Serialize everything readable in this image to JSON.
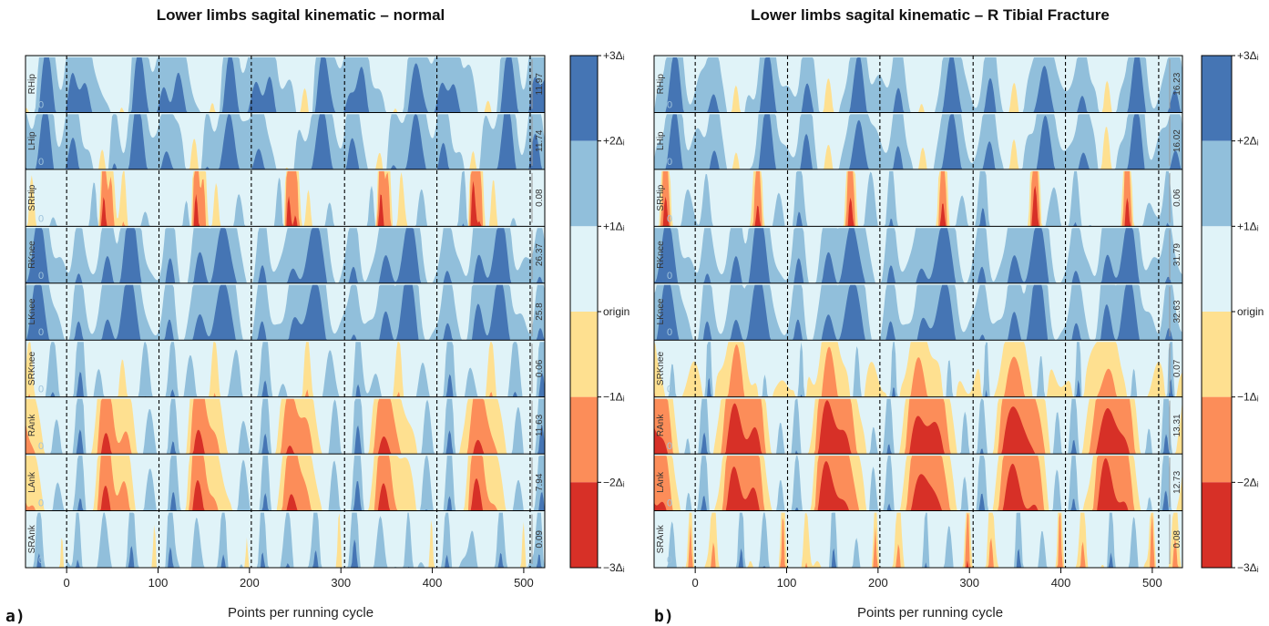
{
  "colors": {
    "neg3": "#d73027",
    "neg2": "#fc8d59",
    "neg1": "#fee090",
    "pos1": "#e0f3f8",
    "pos2": "#91bfdb",
    "pos3": "#4575b4",
    "frame": "#000000",
    "cycle_line": "#000000",
    "range_arrow": "#999999"
  },
  "chart_data": [
    {
      "type": "heatmap",
      "panel_label": "a)",
      "title": "Lower limbs sagital kinematic – normal",
      "xlabel": "Points per running cycle",
      "xlim": [
        -45,
        523
      ],
      "x_ticks": [
        0,
        100,
        200,
        300,
        400,
        500
      ],
      "cycle_boundaries": [
        0,
        101,
        202,
        304,
        405,
        507
      ],
      "rows": [
        {
          "name": "RHip",
          "range": "11.97",
          "zero_label": "0",
          "cycle_length": 101,
          "mean_level": 1.6,
          "peaks": [
            {
              "phase": 0.06,
              "level": 2.0,
              "width": 0.05
            },
            {
              "phase": 0.2,
              "level": 2.2,
              "width": 0.05
            },
            {
              "phase": 0.46,
              "level": 0.6,
              "width": 0.07
            },
            {
              "phase": 0.78,
              "level": 3.0,
              "width": 0.06
            },
            {
              "phase": 0.58,
              "level": -0.9,
              "width": 0.07
            }
          ]
        },
        {
          "name": "LHip",
          "range": "11.74",
          "zero_label": "0",
          "cycle_length": 101,
          "mean_level": 1.5,
          "peaks": [
            {
              "phase": 0.08,
              "level": 2.0,
              "width": 0.05
            },
            {
              "phase": 0.4,
              "level": -1.2,
              "width": 0.07
            },
            {
              "phase": 0.5,
              "level": 1.8,
              "width": 0.05
            },
            {
              "phase": 0.77,
              "level": 3.1,
              "width": 0.06
            }
          ]
        },
        {
          "name": "SRHip",
          "range": "0.08",
          "zero_label": "0",
          "cycle_length": 101,
          "mean_level": 0.4,
          "peaks": [
            {
              "phase": 0.3,
              "level": 1.6,
              "width": 0.04
            },
            {
              "phase": 0.4,
              "level": -3.2,
              "width": 0.03
            },
            {
              "phase": 0.48,
              "level": -2.1,
              "width": 0.03
            },
            {
              "phase": 0.62,
              "level": -1.1,
              "width": 0.03
            },
            {
              "phase": 0.85,
              "level": 1.2,
              "width": 0.05
            }
          ]
        },
        {
          "name": "RKnee",
          "range": "26.37",
          "zero_label": "0",
          "cycle_length": 101,
          "mean_level": 1.1,
          "peaks": [
            {
              "phase": 0.12,
              "level": 1.9,
              "width": 0.05
            },
            {
              "phase": 0.45,
              "level": 2.2,
              "width": 0.06
            },
            {
              "phase": 0.7,
              "level": 3.4,
              "width": 0.08
            }
          ]
        },
        {
          "name": "LKnee",
          "range": "25.8",
          "zero_label": "0",
          "cycle_length": 101,
          "mean_level": 1.1,
          "peaks": [
            {
              "phase": 0.12,
              "level": 1.9,
              "width": 0.05
            },
            {
              "phase": 0.45,
              "level": 2.2,
              "width": 0.06
            },
            {
              "phase": 0.69,
              "level": 3.4,
              "width": 0.08
            }
          ]
        },
        {
          "name": "SRKnee",
          "range": "0.06",
          "zero_label": "0",
          "cycle_length": 101,
          "mean_level": 0.6,
          "peaks": [
            {
              "phase": 0.15,
              "level": 2.2,
              "width": 0.04
            },
            {
              "phase": 0.35,
              "level": 1.2,
              "width": 0.05
            },
            {
              "phase": 0.6,
              "level": -1.3,
              "width": 0.04
            },
            {
              "phase": 0.85,
              "level": 1.6,
              "width": 0.05
            }
          ]
        },
        {
          "name": "RAnk",
          "range": "11.63",
          "zero_label": "0",
          "cycle_length": 101,
          "mean_level": 0.5,
          "peaks": [
            {
              "phase": 0.15,
              "level": 2.4,
              "width": 0.04
            },
            {
              "phase": 0.42,
              "level": -2.5,
              "width": 0.08
            },
            {
              "phase": 0.62,
              "level": -1.4,
              "width": 0.1
            },
            {
              "phase": 0.9,
              "level": 1.6,
              "width": 0.05
            }
          ]
        },
        {
          "name": "LAnk",
          "range": "7.94",
          "zero_label": "0",
          "cycle_length": 101,
          "mean_level": 0.5,
          "peaks": [
            {
              "phase": 0.15,
              "level": 2.3,
              "width": 0.04
            },
            {
              "phase": 0.42,
              "level": -2.8,
              "width": 0.07
            },
            {
              "phase": 0.62,
              "level": -1.4,
              "width": 0.1
            },
            {
              "phase": 0.9,
              "level": 1.6,
              "width": 0.05
            }
          ]
        },
        {
          "name": "SRAnk",
          "range": "0.09",
          "zero_label": "0",
          "cycle_length": 101,
          "mean_level": 0.8,
          "peaks": [
            {
              "phase": 0.12,
              "level": 2.1,
              "width": 0.03
            },
            {
              "phase": 0.4,
              "level": 1.5,
              "width": 0.04
            },
            {
              "phase": 0.7,
              "level": 2.0,
              "width": 0.03
            },
            {
              "phase": 0.95,
              "level": -1.2,
              "width": 0.02
            }
          ]
        }
      ],
      "legend": {
        "labels": [
          "+3Δᵢ",
          "+2Δᵢ",
          "+1Δᵢ",
          "origin",
          "−1Δᵢ",
          "−2Δᵢ",
          "−3Δᵢ"
        ]
      }
    },
    {
      "type": "heatmap",
      "panel_label": "b)",
      "title": "Lower limbs sagital kinematic – R Tibial Fracture",
      "xlabel": "Points per running cycle",
      "xlim": [
        -45,
        533
      ],
      "x_ticks": [
        0,
        100,
        200,
        300,
        400,
        500
      ],
      "cycle_boundaries": [
        0,
        101,
        202,
        304,
        405,
        507
      ],
      "rows": [
        {
          "name": "RHip",
          "range": "16.23",
          "zero_label": "0",
          "cycle_length": 101,
          "mean_level": 1.4,
          "peaks": [
            {
              "phase": 0.2,
              "level": 2.0,
              "width": 0.05
            },
            {
              "phase": 0.45,
              "level": -1.2,
              "width": 0.06
            },
            {
              "phase": 0.78,
              "level": 3.0,
              "width": 0.06
            }
          ]
        },
        {
          "name": "LHip",
          "range": "16.02",
          "zero_label": "0",
          "cycle_length": 101,
          "mean_level": 1.4,
          "peaks": [
            {
              "phase": 0.2,
              "level": 2.0,
              "width": 0.05
            },
            {
              "phase": 0.45,
              "level": -1.2,
              "width": 0.06
            },
            {
              "phase": 0.78,
              "level": 3.0,
              "width": 0.06
            }
          ]
        },
        {
          "name": "SRHip",
          "range": "0.06",
          "zero_label": "0",
          "cycle_length": 101,
          "mean_level": 0.7,
          "peaks": [
            {
              "phase": 0.12,
              "level": 1.9,
              "width": 0.04
            },
            {
              "phase": 0.68,
              "level": -3.2,
              "width": 0.04
            },
            {
              "phase": 0.9,
              "level": 1.3,
              "width": 0.05
            }
          ]
        },
        {
          "name": "RKnee",
          "range": "31.79",
          "zero_label": "0",
          "cycle_length": 101,
          "mean_level": 1.1,
          "peaks": [
            {
              "phase": 0.12,
              "level": 1.9,
              "width": 0.05
            },
            {
              "phase": 0.45,
              "level": 2.2,
              "width": 0.06
            },
            {
              "phase": 0.7,
              "level": 3.4,
              "width": 0.08
            }
          ]
        },
        {
          "name": "LKnee",
          "range": "32.63",
          "zero_label": "0",
          "cycle_length": 101,
          "mean_level": 1.1,
          "peaks": [
            {
              "phase": 0.12,
              "level": 1.9,
              "width": 0.05
            },
            {
              "phase": 0.45,
              "level": 2.2,
              "width": 0.06
            },
            {
              "phase": 0.7,
              "level": 3.4,
              "width": 0.08
            }
          ]
        },
        {
          "name": "SRKnee",
          "range": "0.07",
          "zero_label": "0",
          "cycle_length": 101,
          "mean_level": -0.3,
          "peaks": [
            {
              "phase": 0.15,
              "level": 2.5,
              "width": 0.03
            },
            {
              "phase": 0.45,
              "level": -1.6,
              "width": 0.08
            },
            {
              "phase": 0.75,
              "level": 1.8,
              "width": 0.04
            }
          ]
        },
        {
          "name": "RAnk",
          "range": "13.31",
          "zero_label": "0",
          "cycle_length": 101,
          "mean_level": 0.3,
          "peaks": [
            {
              "phase": 0.1,
              "level": 2.2,
              "width": 0.04
            },
            {
              "phase": 0.42,
              "level": -3.3,
              "width": 0.1
            },
            {
              "phase": 0.65,
              "level": -2.4,
              "width": 0.1
            },
            {
              "phase": 0.92,
              "level": 1.5,
              "width": 0.04
            }
          ]
        },
        {
          "name": "LAnk",
          "range": "12.73",
          "zero_label": "0",
          "cycle_length": 101,
          "mean_level": 0.3,
          "peaks": [
            {
              "phase": 0.1,
              "level": 2.2,
              "width": 0.04
            },
            {
              "phase": 0.42,
              "level": -3.3,
              "width": 0.09
            },
            {
              "phase": 0.65,
              "level": -2.3,
              "width": 0.1
            },
            {
              "phase": 0.92,
              "level": 1.5,
              "width": 0.04
            }
          ]
        },
        {
          "name": "SRAnk",
          "range": "0.08",
          "zero_label": "0",
          "cycle_length": 101,
          "mean_level": 0.2,
          "peaks": [
            {
              "phase": 0.2,
              "level": -1.5,
              "width": 0.03
            },
            {
              "phase": 0.5,
              "level": 2.4,
              "width": 0.03
            },
            {
              "phase": 0.75,
              "level": 1.7,
              "width": 0.04
            },
            {
              "phase": 0.95,
              "level": -2.1,
              "width": 0.02
            }
          ]
        }
      ],
      "legend": {
        "labels": [
          "+3Δᵢ",
          "+2Δᵢ",
          "+1Δᵢ",
          "origin",
          "−1Δᵢ",
          "−2Δᵢ",
          "−3Δᵢ"
        ]
      }
    }
  ]
}
